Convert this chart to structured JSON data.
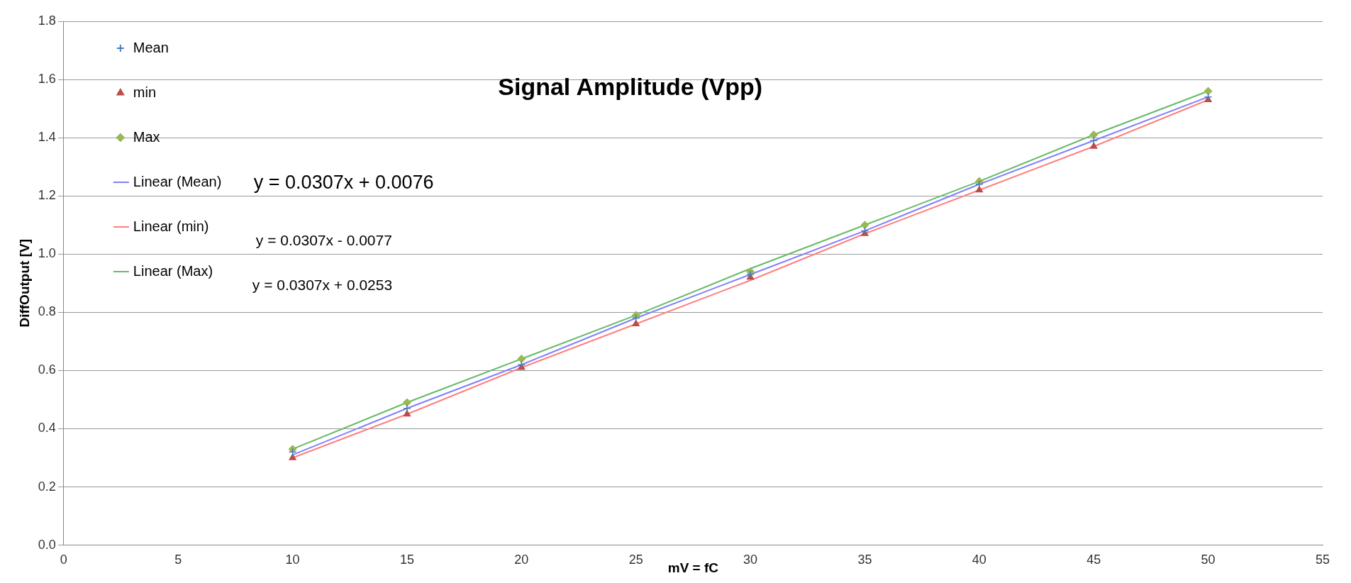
{
  "chart_data": {
    "type": "scatter",
    "title": "Signal Amplitude (Vpp)",
    "xlabel": "mV = fC",
    "ylabel": "DiffOutput [V]",
    "x": [
      10,
      15,
      20,
      25,
      30,
      35,
      40,
      45,
      50
    ],
    "series": [
      {
        "name": "Mean",
        "color": "#4a7ebb",
        "marker": "cross",
        "values": [
          0.32,
          0.47,
          0.62,
          0.78,
          0.93,
          1.08,
          1.24,
          1.39,
          1.54
        ]
      },
      {
        "name": "min",
        "color": "#be4b48",
        "marker": "triangle",
        "values": [
          0.3,
          0.45,
          0.61,
          0.76,
          0.92,
          1.07,
          1.22,
          1.37,
          1.53
        ]
      },
      {
        "name": "Max",
        "color": "#98b954",
        "marker": "diamond",
        "values": [
          0.33,
          0.49,
          0.64,
          0.79,
          0.94,
          1.1,
          1.25,
          1.41,
          1.56
        ]
      },
      {
        "name": "Linear (Mean)",
        "type": "line",
        "color": "#8080ff",
        "values": [
          0.31,
          0.47,
          0.62,
          0.78,
          0.93,
          1.08,
          1.24,
          1.39,
          1.54
        ]
      },
      {
        "name": "Linear (min)",
        "type": "line",
        "color": "#ff7f7f",
        "values": [
          0.3,
          0.45,
          0.61,
          0.76,
          0.91,
          1.07,
          1.22,
          1.37,
          1.53
        ]
      },
      {
        "name": "Linear (Max)",
        "type": "line",
        "color": "#66bb66",
        "values": [
          0.33,
          0.49,
          0.64,
          0.79,
          0.95,
          1.1,
          1.25,
          1.41,
          1.56
        ]
      }
    ],
    "annotations": [
      "y = 0.0307x + 0.0076",
      "y = 0.0307x - 0.0077",
      "y = 0.0307x + 0.0253"
    ],
    "xlim": [
      0,
      55
    ],
    "xticks": [
      0,
      5,
      10,
      15,
      20,
      25,
      30,
      35,
      40,
      45,
      50,
      55
    ],
    "ylim": [
      0,
      1.8
    ],
    "yticks": [
      {
        "value": 0,
        "label": "0.0"
      },
      {
        "value": 0.2,
        "label": "0.2"
      },
      {
        "value": 0.4,
        "label": "0.4"
      },
      {
        "value": 0.6,
        "label": "0.6"
      },
      {
        "value": 0.8,
        "label": "0.8"
      },
      {
        "value": 1,
        "label": "1.0"
      },
      {
        "value": 1.2,
        "label": "1.2"
      },
      {
        "value": 1.4,
        "label": "1.4"
      },
      {
        "value": 1.6,
        "label": "1.6"
      },
      {
        "value": 1.8,
        "label": "1.8"
      }
    ],
    "grid": "y",
    "legend": "top left"
  }
}
